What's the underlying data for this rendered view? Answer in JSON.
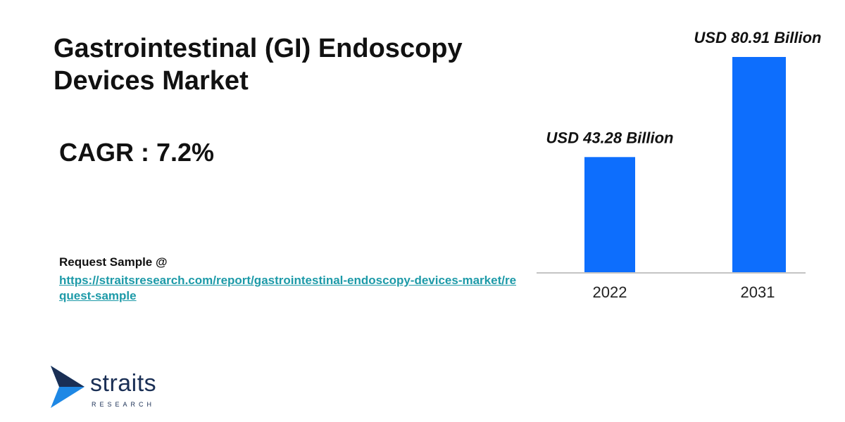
{
  "header": {
    "title": "Gastrointestinal (GI) Endoscopy Devices Market",
    "cagr": "CAGR : 7.2%"
  },
  "request": {
    "label": "Request Sample @",
    "link": "https://straitsresearch.com/report/gastrointestinal-endoscopy-devices-market/request-sample"
  },
  "logo": {
    "word": "straits",
    "sub": "RESEARCH",
    "icon": "straits-logo-icon"
  },
  "colors": {
    "bar": "#0d6efd",
    "link": "#1d9aa8",
    "logo_dark": "#1a2f55",
    "logo_blue": "#1e88e5"
  },
  "chart_data": {
    "type": "bar",
    "categories": [
      "2022",
      "2031"
    ],
    "values": [
      43.28,
      80.91
    ],
    "data_labels": [
      "USD 43.28 Billion",
      "USD 80.91 Billion"
    ],
    "title": "",
    "xlabel": "",
    "ylabel": "",
    "ylim": [
      0,
      80.91
    ],
    "grid": false,
    "legend": "none"
  }
}
